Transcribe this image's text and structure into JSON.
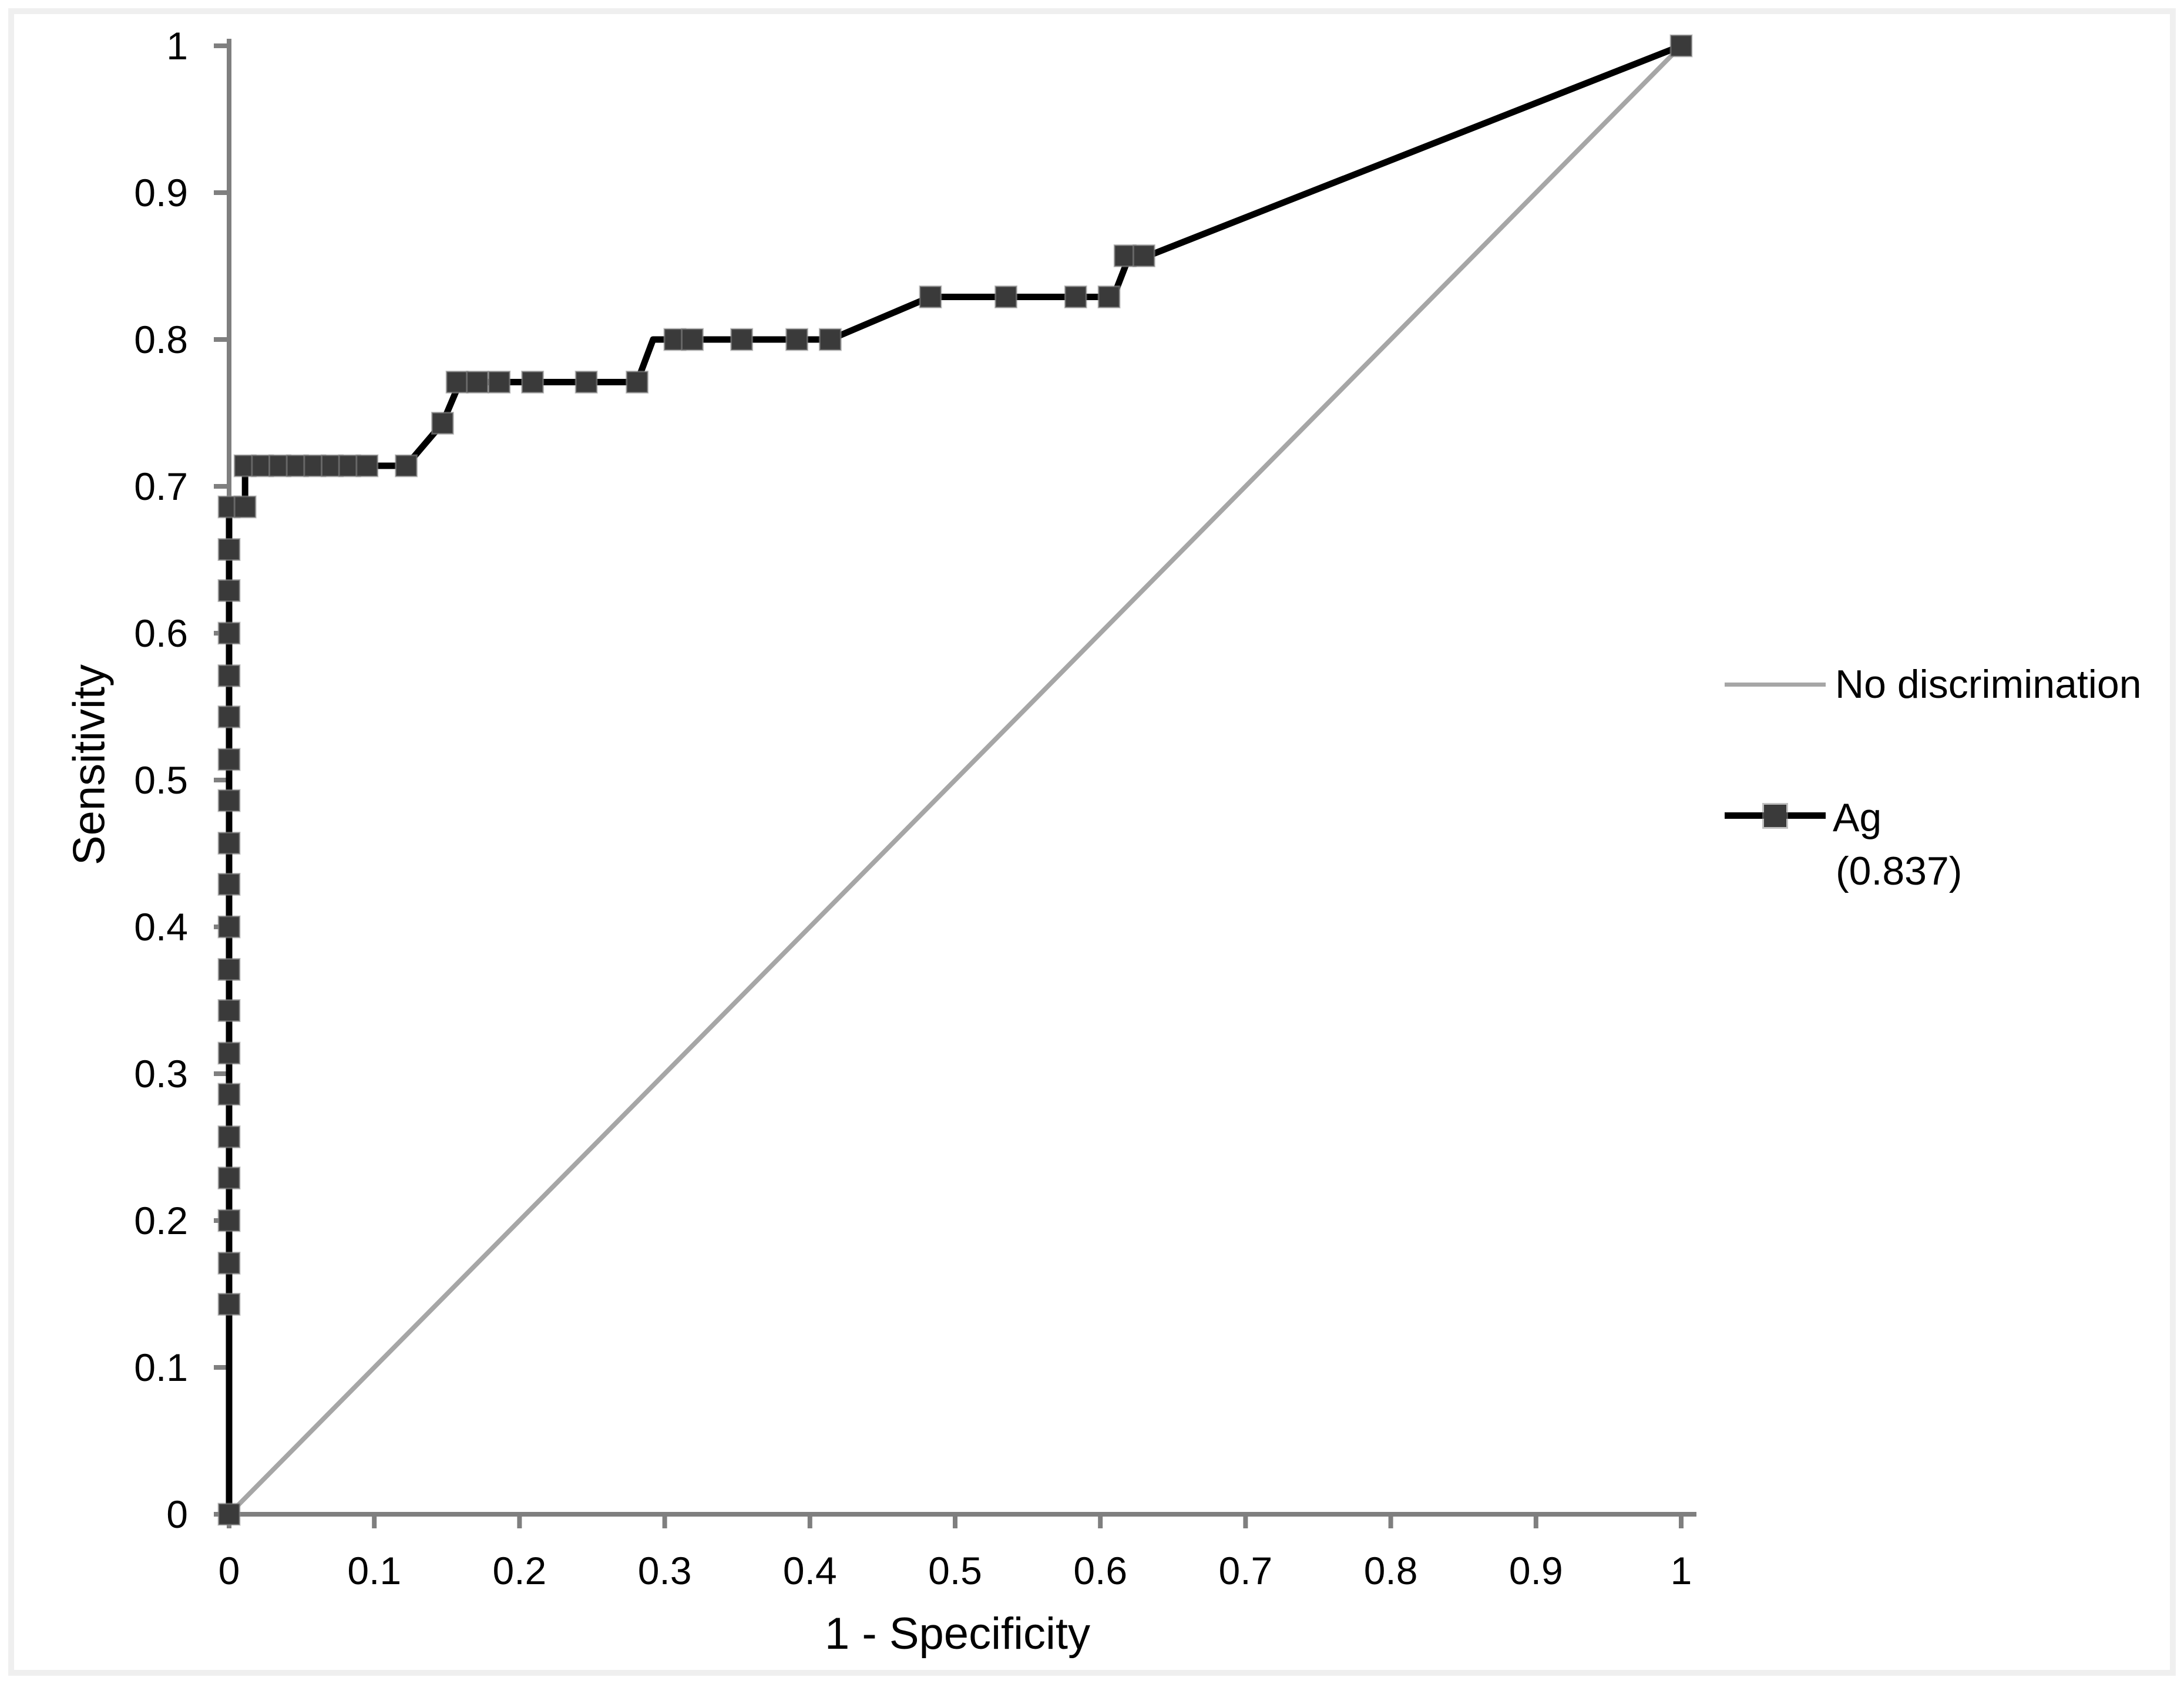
{
  "figure": {
    "background": "#ffffff",
    "frame_color": "#efefef"
  },
  "axes": {
    "x": {
      "title": "1 - Specificity",
      "tick_labels": [
        "0",
        "0.1",
        "0.2",
        "0.3",
        "0.4",
        "0.5",
        "0.6",
        "0.7",
        "0.8",
        "0.9",
        "1"
      ],
      "color": "#7f7f7f"
    },
    "y": {
      "title": "Sensitivity",
      "tick_labels": [
        "0",
        "0.1",
        "0.2",
        "0.3",
        "0.4",
        "0.5",
        "0.6",
        "0.7",
        "0.8",
        "0.9",
        "1"
      ],
      "color": "#7f7f7f"
    }
  },
  "legend": {
    "position": "right",
    "entries": [
      {
        "label": "No discrimination",
        "swatch": "line",
        "color": "#a6a6a6"
      },
      {
        "label": "Ag",
        "sublabel": "(0.837)",
        "swatch": "line-with-square-marker",
        "color": "#000000",
        "marker_color": "#3a3a3a"
      }
    ]
  },
  "chart_data": {
    "type": "line",
    "xlabel": "1 - Specificity",
    "ylabel": "Sensitivity",
    "xlim": [
      0,
      1
    ],
    "ylim": [
      0,
      1
    ],
    "x_ticks": [
      0,
      0.1,
      0.2,
      0.3,
      0.4,
      0.5,
      0.6,
      0.7,
      0.8,
      0.9,
      1
    ],
    "y_ticks": [
      0,
      0.1,
      0.2,
      0.3,
      0.4,
      0.5,
      0.6,
      0.7,
      0.8,
      0.9,
      1
    ],
    "grid": false,
    "legend_position": "right",
    "series": [
      {
        "name": "No discrimination",
        "color": "#a6a6a6",
        "line_width": 8,
        "marker": "none",
        "points": [
          [
            0,
            0
          ],
          [
            1,
            1
          ]
        ]
      },
      {
        "name": "Ag",
        "auc": 0.837,
        "color": "#000000",
        "line_width": 11,
        "marker": "square",
        "marker_size": 36,
        "marker_color": "#3a3a3a",
        "points": [
          [
            0,
            0
          ],
          [
            0,
            0.686
          ],
          [
            0.011,
            0.686
          ],
          [
            0.011,
            0.714
          ],
          [
            0.122,
            0.714
          ],
          [
            0.147,
            0.743
          ],
          [
            0.159,
            0.771
          ],
          [
            0.281,
            0.771
          ],
          [
            0.292,
            0.8
          ],
          [
            0.414,
            0.8
          ],
          [
            0.483,
            0.829
          ],
          [
            0.609,
            0.829
          ],
          [
            0.62,
            0.857
          ],
          [
            0.633,
            0.857
          ],
          [
            1,
            1
          ]
        ],
        "marker_points": [
          [
            0,
            0
          ],
          [
            0,
            0.143
          ],
          [
            0,
            0.171
          ],
          [
            0,
            0.2
          ],
          [
            0,
            0.229
          ],
          [
            0,
            0.257
          ],
          [
            0,
            0.286
          ],
          [
            0,
            0.314
          ],
          [
            0,
            0.343
          ],
          [
            0,
            0.371
          ],
          [
            0,
            0.4
          ],
          [
            0,
            0.429
          ],
          [
            0,
            0.457
          ],
          [
            0,
            0.486
          ],
          [
            0,
            0.514
          ],
          [
            0,
            0.543
          ],
          [
            0,
            0.571
          ],
          [
            0,
            0.6
          ],
          [
            0,
            0.629
          ],
          [
            0,
            0.657
          ],
          [
            0,
            0.686
          ],
          [
            0.011,
            0.686
          ],
          [
            0.011,
            0.714
          ],
          [
            0.023,
            0.714
          ],
          [
            0.035,
            0.714
          ],
          [
            0.047,
            0.714
          ],
          [
            0.059,
            0.714
          ],
          [
            0.071,
            0.714
          ],
          [
            0.083,
            0.714
          ],
          [
            0.095,
            0.714
          ],
          [
            0.122,
            0.714
          ],
          [
            0.147,
            0.743
          ],
          [
            0.157,
            0.771
          ],
          [
            0.171,
            0.771
          ],
          [
            0.186,
            0.771
          ],
          [
            0.209,
            0.771
          ],
          [
            0.246,
            0.771
          ],
          [
            0.281,
            0.771
          ],
          [
            0.307,
            0.8
          ],
          [
            0.319,
            0.8
          ],
          [
            0.353,
            0.8
          ],
          [
            0.391,
            0.8
          ],
          [
            0.414,
            0.8
          ],
          [
            0.483,
            0.829
          ],
          [
            0.535,
            0.829
          ],
          [
            0.583,
            0.829
          ],
          [
            0.606,
            0.829
          ],
          [
            0.617,
            0.857
          ],
          [
            0.63,
            0.857
          ],
          [
            1,
            1
          ]
        ]
      }
    ]
  }
}
